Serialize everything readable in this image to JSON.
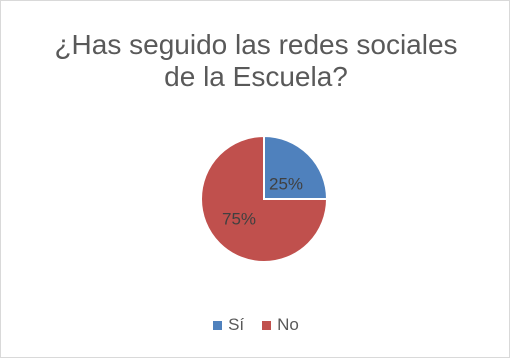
{
  "chart_data": {
    "type": "pie",
    "title_lines": [
      "¿Has seguido  las redes sociales",
      "de la Escuela?"
    ],
    "categories": [
      "Sí",
      "No"
    ],
    "values": [
      25,
      75
    ],
    "labels": [
      "25%",
      "75%"
    ],
    "colors": [
      "#4f81bd",
      "#c0504d"
    ],
    "legend_position": "bottom"
  }
}
